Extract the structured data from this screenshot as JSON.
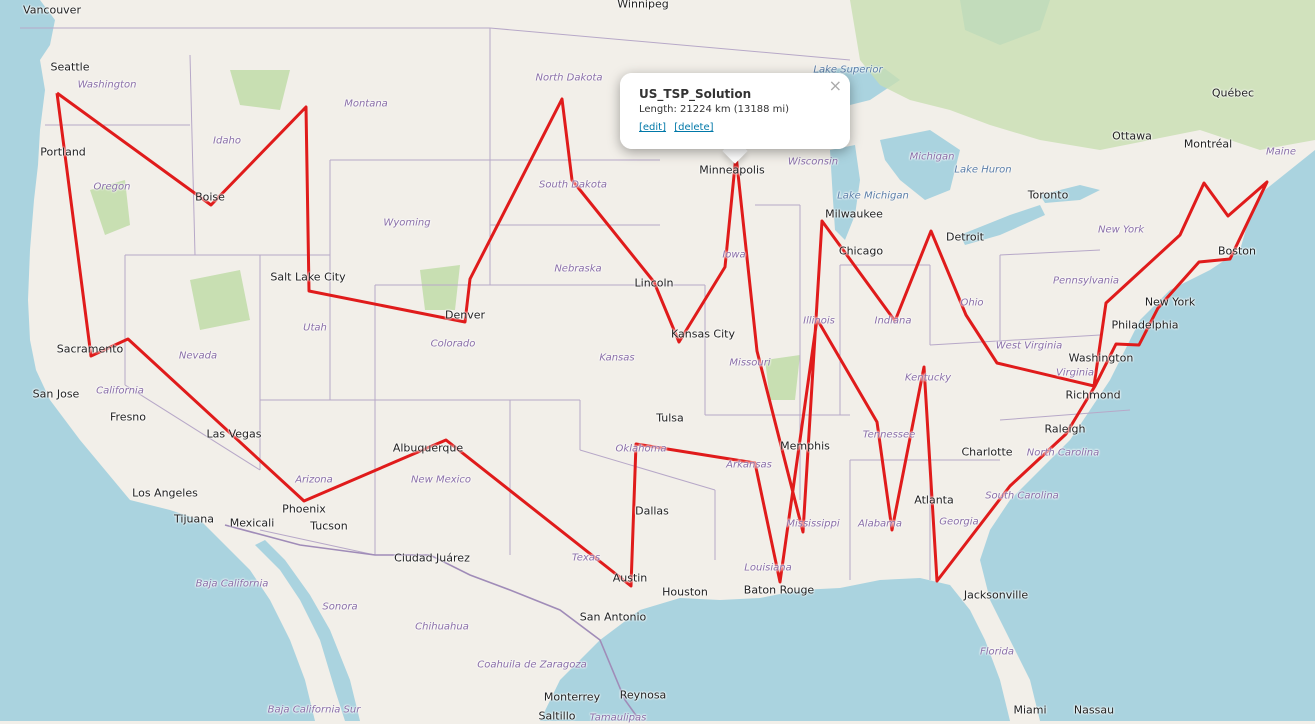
{
  "map": {
    "colors": {
      "land": "#f2efe9",
      "water": "#aad3df",
      "forest": "#c8dfb2",
      "border": "#b7a8c8",
      "route": "#e01b1b"
    },
    "route_name": "US_TSP_Solution",
    "cities": [
      {
        "name": "Vancouver"
      },
      {
        "name": "Seattle"
      },
      {
        "name": "Portland"
      },
      {
        "name": "Boise"
      },
      {
        "name": "Salt Lake City"
      },
      {
        "name": "Sacramento"
      },
      {
        "name": "San Jose"
      },
      {
        "name": "Fresno"
      },
      {
        "name": "Las Vegas"
      },
      {
        "name": "Los Angeles"
      },
      {
        "name": "Tijuana"
      },
      {
        "name": "Mexicali"
      },
      {
        "name": "Phoenix"
      },
      {
        "name": "Tucson"
      },
      {
        "name": "Albuquerque"
      },
      {
        "name": "Ciudad Juárez"
      },
      {
        "name": "Denver"
      },
      {
        "name": "Lincoln"
      },
      {
        "name": "Kansas City"
      },
      {
        "name": "Tulsa"
      },
      {
        "name": "Dallas"
      },
      {
        "name": "Austin"
      },
      {
        "name": "San Antonio"
      },
      {
        "name": "Houston"
      },
      {
        "name": "Baton Rouge"
      },
      {
        "name": "Memphis"
      },
      {
        "name": "Minneapolis"
      },
      {
        "name": "Milwaukee"
      },
      {
        "name": "Chicago"
      },
      {
        "name": "Detroit"
      },
      {
        "name": "Toronto"
      },
      {
        "name": "Ottawa"
      },
      {
        "name": "Montréal"
      },
      {
        "name": "Québec"
      },
      {
        "name": "Boston"
      },
      {
        "name": "New York"
      },
      {
        "name": "Philadelphia"
      },
      {
        "name": "Washington"
      },
      {
        "name": "Richmond"
      },
      {
        "name": "Raleigh"
      },
      {
        "name": "Charlotte"
      },
      {
        "name": "Atlanta"
      },
      {
        "name": "Jacksonville"
      },
      {
        "name": "Miami"
      },
      {
        "name": "Nassau"
      },
      {
        "name": "Monterrey"
      },
      {
        "name": "Reynosa"
      },
      {
        "name": "Saltillo"
      },
      {
        "name": "Winnipeg"
      }
    ],
    "regions": [
      {
        "name": "Washington"
      },
      {
        "name": "Oregon"
      },
      {
        "name": "Idaho"
      },
      {
        "name": "Montana"
      },
      {
        "name": "Wyoming"
      },
      {
        "name": "Nevada"
      },
      {
        "name": "Utah"
      },
      {
        "name": "Colorado"
      },
      {
        "name": "California"
      },
      {
        "name": "Arizona"
      },
      {
        "name": "New Mexico"
      },
      {
        "name": "North Dakota"
      },
      {
        "name": "South Dakota"
      },
      {
        "name": "Nebraska"
      },
      {
        "name": "Kansas"
      },
      {
        "name": "Oklahoma"
      },
      {
        "name": "Texas"
      },
      {
        "name": "Iowa"
      },
      {
        "name": "Missouri"
      },
      {
        "name": "Arkansas"
      },
      {
        "name": "Louisiana"
      },
      {
        "name": "Mississippi"
      },
      {
        "name": "Alabama"
      },
      {
        "name": "Tennessee"
      },
      {
        "name": "Kentucky"
      },
      {
        "name": "Illinois"
      },
      {
        "name": "Indiana"
      },
      {
        "name": "Ohio"
      },
      {
        "name": "Wisconsin"
      },
      {
        "name": "Michigan"
      },
      {
        "name": "Pennsylvania"
      },
      {
        "name": "New York"
      },
      {
        "name": "West Virginia"
      },
      {
        "name": "Virginia"
      },
      {
        "name": "North Carolina"
      },
      {
        "name": "South Carolina"
      },
      {
        "name": "Georgia"
      },
      {
        "name": "Florida"
      },
      {
        "name": "Maine"
      },
      {
        "name": "Baja California"
      },
      {
        "name": "Sonora"
      },
      {
        "name": "Chihuahua"
      },
      {
        "name": "Coahuila de Zaragoza"
      },
      {
        "name": "Baja California Sur"
      },
      {
        "name": "Tamaulipas"
      }
    ],
    "water_labels": [
      {
        "name": "Lake Superior"
      },
      {
        "name": "Lake Michigan"
      },
      {
        "name": "Lake Huron"
      }
    ]
  },
  "popup": {
    "title": "US_TSP_Solution",
    "length": "Length: 21224 km (13188 mi)",
    "edit_label": "[edit]",
    "delete_label": "[delete]",
    "close_label": "×"
  }
}
